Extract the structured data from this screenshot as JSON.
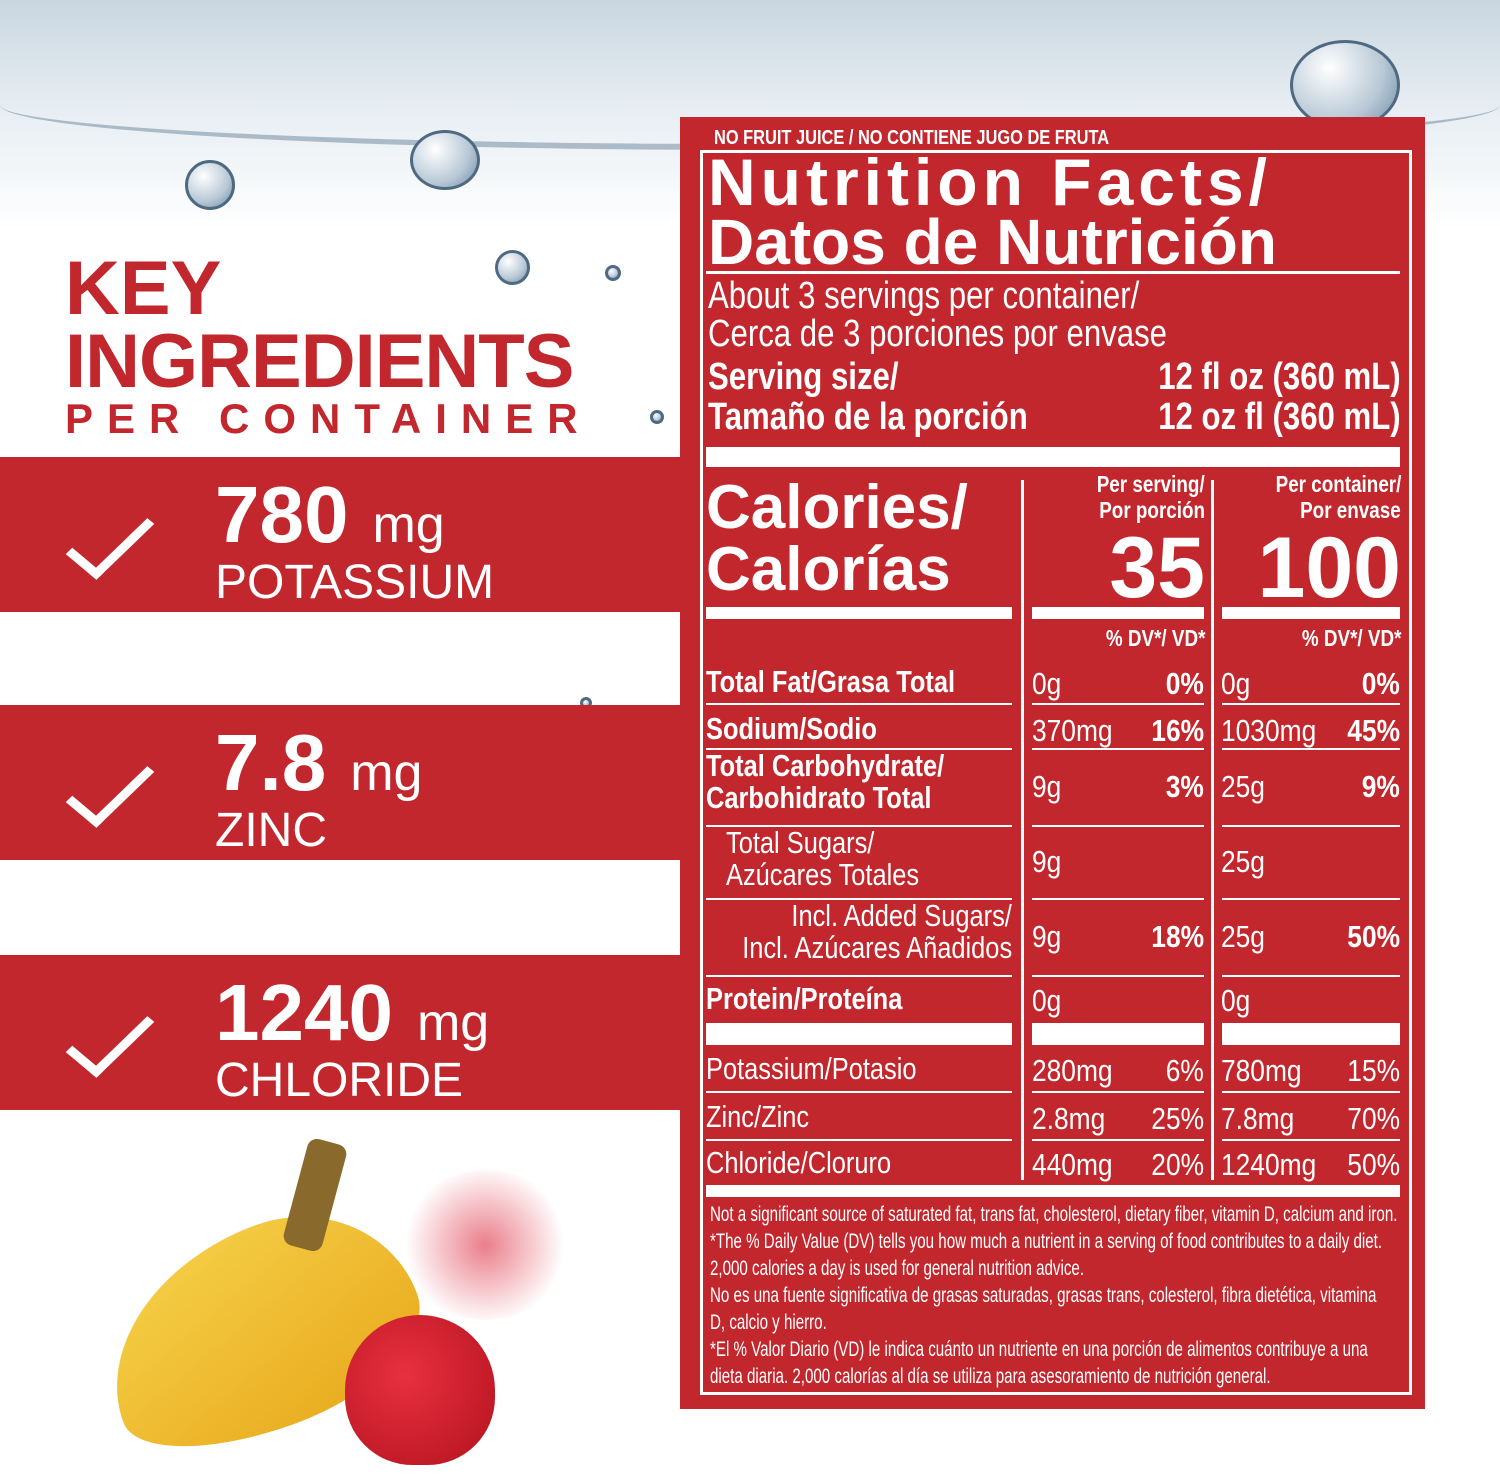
{
  "key_ingredients": {
    "title_line1": "KEY",
    "title_line2": "INGREDIENTS",
    "subtitle": "PER CONTAINER",
    "items": [
      {
        "amount": "780",
        "unit": "mg",
        "name": "POTASSIUM"
      },
      {
        "amount": "7.8",
        "unit": "mg",
        "name": "ZINC"
      },
      {
        "amount": "1240",
        "unit": "mg",
        "name": "CHLORIDE"
      }
    ]
  },
  "label": {
    "top_note": "NO FRUIT JUICE / NO CONTIENE JUGO DE FRUTA",
    "title_line1": "Nutrition Facts/",
    "title_line2": "Datos de Nutrición",
    "servings_line1": "About 3 servings per container/",
    "servings_line2": "Cerca de 3 porciones por envase",
    "serving_size_label1": "Serving size/",
    "serving_size_value1": "12 fl oz (360 mL)",
    "serving_size_label2": "Tamaño de la porción",
    "serving_size_value2": "12 oz fl (360 mL)",
    "calories_label1": "Calories/",
    "calories_label2": "Calorías",
    "col1_header1": "Per serving/",
    "col1_header2": "Por porción",
    "col1_calories": "35",
    "col2_header1": "Per container/",
    "col2_header2": "Por envase",
    "col2_calories": "100",
    "dv_header": "% DV*/ VD*",
    "rows": [
      {
        "label": "Total Fat/Grasa Total",
        "v1": "0g",
        "p1": "0%",
        "v2": "0g",
        "p2": "0%"
      },
      {
        "label": "Sodium/Sodio",
        "v1": "370mg",
        "p1": "16%",
        "v2": "1030mg",
        "p2": "45%"
      },
      {
        "label": "Total Carbohydrate/",
        "label2": "Carbohidrato Total",
        "v1": "9g",
        "p1": "3%",
        "v2": "25g",
        "p2": "9%"
      },
      {
        "label": "Total Sugars/",
        "label2": "Azúcares Totales",
        "v1": "9g",
        "p1": "",
        "v2": "25g",
        "p2": ""
      },
      {
        "label": "Incl. Added Sugars/",
        "label2": "Incl. Azúcares Añadidos",
        "v1": "9g",
        "p1": "18%",
        "v2": "25g",
        "p2": "50%"
      },
      {
        "label": "Protein/Proteína",
        "v1": "0g",
        "p1": "",
        "v2": "0g",
        "p2": ""
      },
      {
        "label": "Potassium/Potasio",
        "v1": "280mg",
        "p1": "6%",
        "v2": "780mg",
        "p2": "15%"
      },
      {
        "label": "Zinc/Zinc",
        "v1": "2.8mg",
        "p1": "25%",
        "v2": "7.8mg",
        "p2": "70%"
      },
      {
        "label": "Chloride/Cloruro",
        "v1": "440mg",
        "p1": "20%",
        "v2": "1240mg",
        "p2": "50%"
      }
    ],
    "footnotes": [
      "Not a significant source of saturated fat, trans fat, cholesterol, dietary fiber, vitamin D,  calcium and iron.",
      "*The % Daily Value (DV) tells you how much a nutrient in a serving of food contributes to a daily diet.",
      "2,000 calories a day is used for general nutrition advice.",
      "No es una fuente significativa de grasas saturadas, grasas trans, colesterol, fibra dietética, vitamina",
      "D, calcio y hierro.",
      "*El % Valor Diario (VD) le indica cuánto un nutriente en una porción de alimentos contribuye a una",
      "dieta diaria. 2,000 calorías al día se utiliza para asesoramiento de nutrición general."
    ]
  },
  "colors": {
    "brand_red": "#c1272d",
    "white": "#ffffff"
  }
}
